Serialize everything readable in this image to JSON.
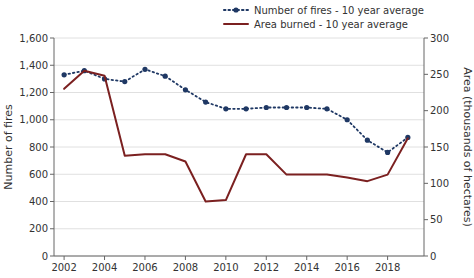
{
  "chart_data": {
    "type": "line",
    "x": [
      2002,
      2003,
      2004,
      2005,
      2006,
      2007,
      2008,
      2009,
      2010,
      2011,
      2012,
      2013,
      2014,
      2015,
      2016,
      2017,
      2018,
      2019
    ],
    "xlim": [
      2001.5,
      2019.8
    ],
    "xticks": [
      2002,
      2004,
      2006,
      2008,
      2010,
      2012,
      2014,
      2016,
      2018
    ],
    "ylabel": "Number of fires",
    "y2label": "Area (thousands of hectares)",
    "ylim": [
      0,
      1600
    ],
    "yticks": [
      0,
      200,
      400,
      600,
      800,
      {
        "value": 1000,
        "label": "1,000"
      },
      {
        "value": 1200,
        "label": "1,200"
      },
      {
        "value": 1400,
        "label": "1,400"
      },
      {
        "value": 1600,
        "label": "1,600"
      }
    ],
    "y2lim": [
      0,
      300
    ],
    "y2ticks": [
      0,
      50,
      100,
      150,
      200,
      250,
      300
    ],
    "grid": true,
    "legend": "upper right",
    "series": [
      {
        "name": "Number of fires - 10 year average",
        "color": "#1f3864",
        "marker": "circle",
        "line_style": "dotted",
        "values": [
          1330,
          1360,
          1300,
          1280,
          1370,
          1320,
          1220,
          1130,
          1080,
          1080,
          1090,
          1090,
          1090,
          1080,
          1000,
          850,
          760,
          870
        ]
      },
      {
        "name": "Area burned - 10 year average",
        "color": "#7b2020",
        "line_style": "solid",
        "axis": "y2",
        "values": [
          230,
          255,
          248,
          138,
          140,
          140,
          130,
          75,
          77,
          140,
          140,
          112,
          112,
          112,
          108,
          103,
          112,
          162
        ]
      }
    ]
  }
}
